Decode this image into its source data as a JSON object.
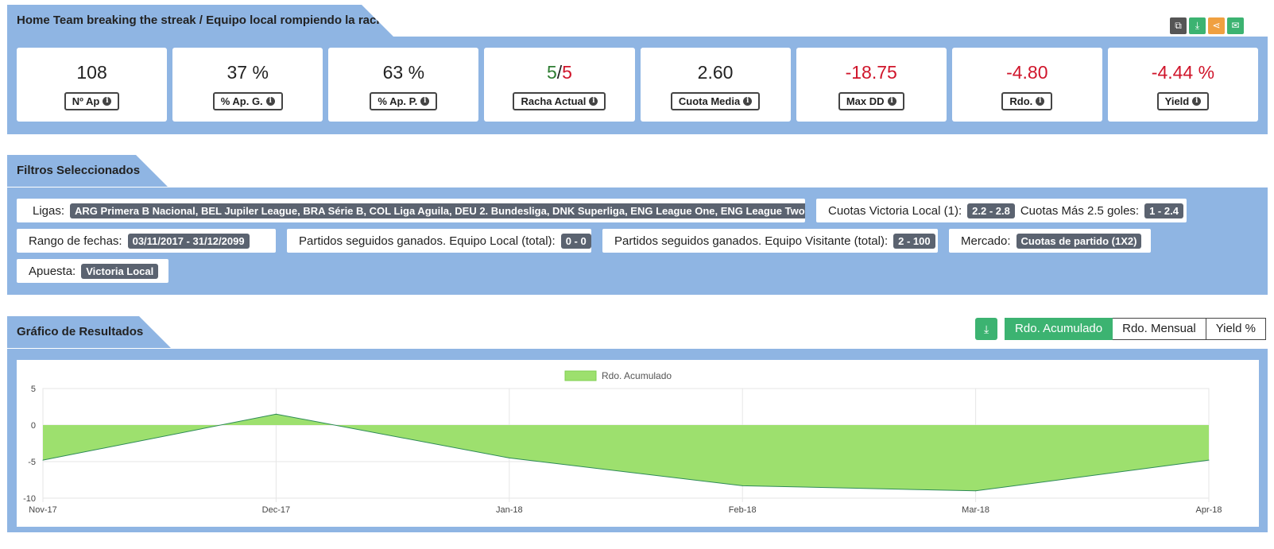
{
  "header": {
    "title": "Home Team breaking the streak / Equipo local rompiendo la racha"
  },
  "toolbar": {
    "icons": [
      {
        "name": "copy-icon",
        "glyph": "⧉",
        "color": "#555555"
      },
      {
        "name": "download-icon",
        "glyph": "⤓",
        "color": "#3cb371"
      },
      {
        "name": "share-icon",
        "glyph": "⋖",
        "color": "#f0a040"
      },
      {
        "name": "mail-icon",
        "glyph": "✉",
        "color": "#3cb371"
      }
    ]
  },
  "stats": [
    {
      "value": "108",
      "label": "Nº Ap",
      "color": "normal"
    },
    {
      "value": "37 %",
      "label": "% Ap. G.",
      "color": "normal"
    },
    {
      "value": "63 %",
      "label": "% Ap. P.",
      "color": "normal"
    },
    {
      "value_a": "5",
      "sep": "/",
      "value_b": "5",
      "label": "Racha Actual",
      "color": "split"
    },
    {
      "value": "2.60",
      "label": "Cuota Media",
      "color": "normal"
    },
    {
      "value": "-18.75",
      "label": "Max DD",
      "color": "red"
    },
    {
      "value": "-4.80",
      "label": "Rdo.",
      "color": "red"
    },
    {
      "value": "-4.44 %",
      "label": "Yield",
      "color": "red"
    }
  ],
  "filters": {
    "title": "Filtros Seleccionados",
    "ligas_label": "Ligas:",
    "ligas_value": "ARG Primera B Nacional, BEL Jupiler League, BRA Série B, COL Liga Aguila, DEU 2. Bundesliga, DNK Superliga, ENG League One, ENG League Two ...",
    "cuotas_local_label": "Cuotas Victoria Local (1):",
    "cuotas_local_value": "2.2 - 2.8",
    "cuotas_goles_label": "Cuotas Más 2.5 goles:",
    "cuotas_goles_value": "1 - 2.4",
    "fechas_label": "Rango de fechas:",
    "fechas_value": "03/11/2017 - 31/12/2099",
    "local_label": "Partidos seguidos ganados. Equipo Local (total):",
    "local_value": "0 - 0",
    "visitante_label": "Partidos seguidos ganados. Equipo Visitante (total):",
    "visitante_value": "2 - 100",
    "mercado_label": "Mercado:",
    "mercado_value": "Cuotas de partido (1X2)",
    "apuesta_label": "Apuesta:",
    "apuesta_value": "Victoria Local"
  },
  "results": {
    "title": "Gráfico de Resultados",
    "buttons": [
      "Rdo. Acumulado",
      "Rdo. Mensual",
      "Yield %"
    ],
    "active_button": "Rdo. Acumulado"
  },
  "chart_data": {
    "type": "area",
    "x": [
      "Nov-17",
      "Dec-17",
      "Jan-18",
      "Feb-18",
      "Mar-18",
      "Apr-18"
    ],
    "series": [
      {
        "name": "Rdo. Acumulado",
        "values": [
          -4.8,
          1.5,
          -4.5,
          -8.3,
          -9.0,
          -4.8
        ]
      }
    ],
    "yticks": [
      5,
      0,
      -5,
      -10
    ],
    "ylim": [
      -10,
      5
    ],
    "grid": true,
    "legend": "top-center",
    "fill_color": "#9de06e",
    "line_color": "#2e8b57"
  }
}
